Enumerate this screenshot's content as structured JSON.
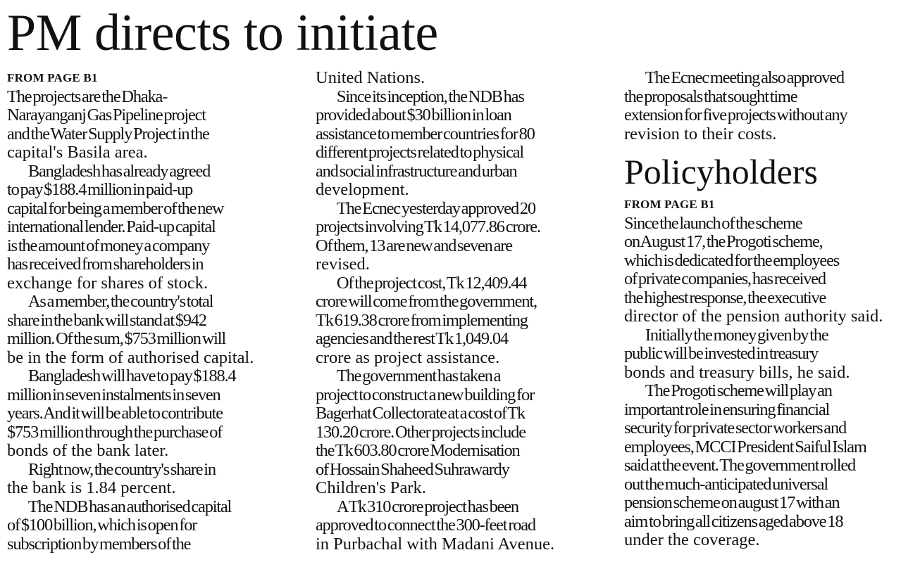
{
  "headline": "PM directs to initiate",
  "columns": [
    {
      "blocks": [
        {
          "type": "kicker",
          "text": "FROM PAGE B1"
        },
        {
          "type": "para",
          "indent": false,
          "lines": [
            "The projects are the Dhaka-",
            "Narayanganj Gas Pipeline project",
            "and the Water Supply Project in the",
            "capital's Basila area."
          ]
        },
        {
          "type": "para",
          "indent": true,
          "lines": [
            "Bangladesh has already agreed",
            "to pay $188.4 million in paid-up",
            "capital for being a member of the new",
            "international lender. Paid-up capital",
            "is the amount of money a company",
            "has received from shareholders in",
            "exchange for shares of stock."
          ]
        },
        {
          "type": "para",
          "indent": true,
          "lines": [
            "As a member, the country's total",
            "share in the bank will stand at $942",
            "million. Of the sum, $753 million will",
            "be in the form of authorised capital."
          ]
        },
        {
          "type": "para",
          "indent": true,
          "lines": [
            "Bangladesh will have to pay $188.4",
            "million in seven instalments in seven",
            "years. And it will be able to contribute",
            "$753 million through the purchase of",
            "bonds of the bank later."
          ]
        },
        {
          "type": "para",
          "indent": true,
          "lines": [
            "Right now, the country's share in",
            "the bank is 1.84 percent."
          ]
        },
        {
          "type": "para",
          "indent": true,
          "continues": true,
          "lines": [
            "The NDB has an authorised capital",
            "of $100 billion, which is open for",
            "subscription by members of the"
          ]
        }
      ]
    },
    {
      "blocks": [
        {
          "type": "para",
          "indent": false,
          "lines": [
            "United Nations."
          ]
        },
        {
          "type": "para",
          "indent": true,
          "lines": [
            "Since its inception, the NDB has",
            "provided about $30 billion in loan",
            "assistance to member countries for 80",
            "different projects related to physical",
            "and social infrastructure and urban",
            "development."
          ]
        },
        {
          "type": "para",
          "indent": true,
          "lines": [
            "The Ecnec yesterday approved 20",
            "projects involving Tk 14,077.86 crore.",
            "Of them, 13 are new and seven are",
            "revised."
          ]
        },
        {
          "type": "para",
          "indent": true,
          "lines": [
            "Of the project cost, Tk 12,409.44",
            "crore will come from the government,",
            "Tk 619.38 crore from implementing",
            "agencies and the rest Tk 1,049.04",
            "crore as project assistance."
          ]
        },
        {
          "type": "para",
          "indent": true,
          "lines": [
            "The government has taken a",
            "project to construct a new building for",
            "Bagerhat Collectorate at a cost of Tk",
            "130.20 crore. Other projects include",
            "the Tk 603.80 crore Modernisation",
            "of Hossain Shaheed Suhrawardy",
            "Children's Park."
          ]
        },
        {
          "type": "para",
          "indent": true,
          "lines": [
            "A Tk 310 crore project has been",
            "approved to connect the 300-feet road",
            "in Purbachal with Madani Avenue."
          ]
        }
      ]
    },
    {
      "blocks": [
        {
          "type": "para",
          "indent": true,
          "lines": [
            "The Ecnec meeting also approved",
            "the proposals that sought time",
            "extension for five projects without any",
            "revision to their costs."
          ]
        },
        {
          "type": "subhead",
          "text": "Policyholders"
        },
        {
          "type": "kicker",
          "text": "FROM PAGE B1"
        },
        {
          "type": "para",
          "indent": false,
          "lines": [
            "Since the launch of the scheme",
            "on August 17, the Progoti scheme,",
            "which is dedicated for the employees",
            "of private companies, has received",
            "the highest response, the executive",
            "director of the pension authority said."
          ]
        },
        {
          "type": "para",
          "indent": true,
          "lines": [
            "Initially the money given by the",
            "public will be invested in treasury",
            "bonds and treasury bills, he said."
          ]
        },
        {
          "type": "para",
          "indent": true,
          "lines": [
            "The Progoti scheme will play an",
            "important role in ensuring financial",
            "security for private sector workers and",
            "employees, MCCI President Saiful Islam",
            "said at the event. The government rolled",
            "out the much-anticipated universal",
            "pension scheme on august 17 with an",
            "aim to bring all citizens aged above 18",
            "under the coverage."
          ]
        }
      ]
    }
  ]
}
